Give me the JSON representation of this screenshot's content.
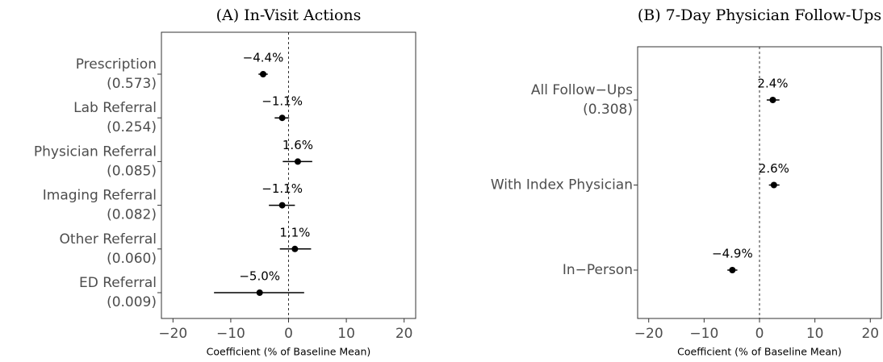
{
  "chart_data": [
    {
      "type": "errorbar",
      "title": "(A) In-Visit Actions",
      "x_label": "Coefficient (% of Baseline Mean)",
      "categories": [
        "Prescription",
        "Lab Referral",
        "Physician Referral",
        "Imaging Referral",
        "Other Referral",
        "ED Referral"
      ],
      "category_notes": [
        "(0.573)",
        "(0.254)",
        "(0.085)",
        "(0.082)",
        "(0.060)",
        "(0.009)"
      ],
      "values": [
        -4.4,
        -1.1,
        1.6,
        -1.1,
        1.1,
        -5.0
      ],
      "value_labels": [
        "−4.4%",
        "−1.1%",
        "1.6%",
        "−1.1%",
        "1.1%",
        "−5.0%"
      ],
      "lower": [
        -5.2,
        -2.4,
        -1.0,
        -3.4,
        -1.5,
        -12.9
      ],
      "upper": [
        -3.6,
        0.1,
        4.1,
        1.1,
        3.9,
        2.7
      ],
      "color": "#000000",
      "xlim": [
        -22,
        22
      ],
      "xticks": [
        {
          "value": -20,
          "label": "−20"
        },
        {
          "value": -10,
          "label": "−10"
        },
        0,
        10,
        20
      ]
    },
    {
      "type": "errorbar",
      "title": "(B) 7-Day Physician Follow-Ups",
      "x_label": "Coefficient (% of Baseline Mean)",
      "categories": [
        "All Follow−Ups",
        "With Index Physician",
        "In−Person"
      ],
      "category_notes": [
        "(0.308)",
        null,
        null
      ],
      "values": [
        2.4,
        2.6,
        -4.9
      ],
      "value_labels": [
        "2.4%",
        "2.6%",
        "−4.9%"
      ],
      "lower": [
        1.3,
        1.7,
        -5.8
      ],
      "upper": [
        3.6,
        3.6,
        -4.0
      ],
      "color": "#000000",
      "xlim": [
        -22,
        22
      ],
      "xticks": [
        {
          "value": -20,
          "label": "−20"
        },
        {
          "value": -10,
          "label": "−10"
        },
        0,
        10,
        20
      ]
    }
  ]
}
